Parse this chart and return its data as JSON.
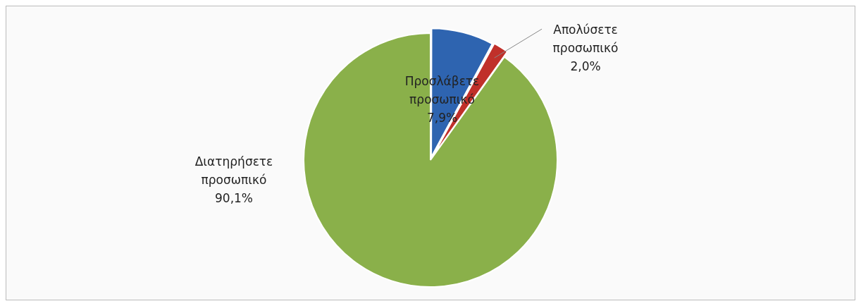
{
  "chart_data": {
    "type": "pie",
    "categories": [
      "Προσλάβετε προσωπικό",
      "Απολύσετε προσωπικό",
      "Διατηρήσετε προσωπικό"
    ],
    "values": [
      7.9,
      2.0,
      90.1
    ],
    "colors": [
      "#2e64b0",
      "#c0302a",
      "#8ab04a"
    ],
    "value_labels": [
      "7,9%",
      "2,0%",
      "90,1%"
    ]
  }
}
